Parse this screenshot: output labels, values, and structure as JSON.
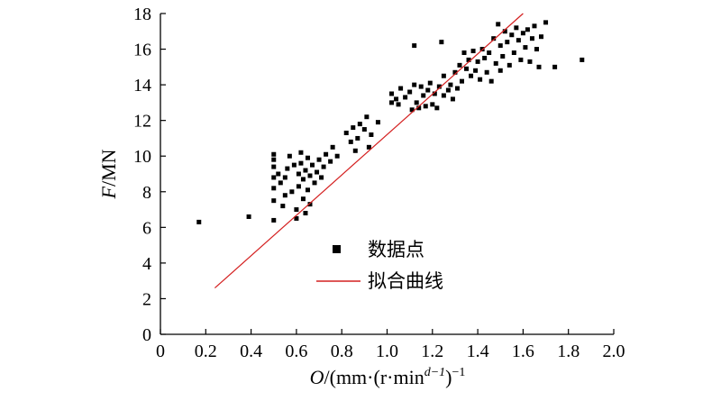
{
  "chart_data": {
    "type": "scatter",
    "xlabel": {
      "symbol": "O",
      "unit_prefix": "/(mm·(r·min",
      "unit_sup": "d−1",
      "unit_close": ")",
      "unit_sup2": "−1"
    },
    "ylabel": {
      "symbol": "F",
      "unit": "/MN"
    },
    "xlim": [
      0,
      2.0
    ],
    "ylim": [
      0,
      18
    ],
    "x_ticks": [
      "0",
      "0.2",
      "0.4",
      "0.6",
      "0.8",
      "1.0",
      "1.2",
      "1.4",
      "1.6",
      "1.8",
      "2.0"
    ],
    "y_ticks": [
      "0",
      "2",
      "4",
      "6",
      "8",
      "10",
      "12",
      "14",
      "16",
      "18"
    ],
    "legend": {
      "position": "lower-center",
      "entries": [
        {
          "label": "数据点",
          "marker": "square",
          "color": "#000000"
        },
        {
          "label": "拟合曲线",
          "marker": "line",
          "color": "#d42020"
        }
      ]
    },
    "series": [
      {
        "name": "数据点",
        "color": "#000000",
        "points": [
          [
            0.17,
            6.3
          ],
          [
            0.39,
            6.6
          ],
          [
            0.5,
            6.4
          ],
          [
            0.5,
            7.5
          ],
          [
            0.5,
            8.2
          ],
          [
            0.5,
            8.8
          ],
          [
            0.5,
            9.4
          ],
          [
            0.5,
            9.8
          ],
          [
            0.5,
            10.1
          ],
          [
            0.52,
            9.0
          ],
          [
            0.53,
            8.5
          ],
          [
            0.54,
            7.2
          ],
          [
            0.55,
            7.8
          ],
          [
            0.55,
            8.8
          ],
          [
            0.56,
            9.3
          ],
          [
            0.57,
            10.0
          ],
          [
            0.58,
            8.0
          ],
          [
            0.59,
            9.5
          ],
          [
            0.6,
            6.5
          ],
          [
            0.6,
            7.0
          ],
          [
            0.61,
            8.3
          ],
          [
            0.61,
            9.0
          ],
          [
            0.62,
            9.6
          ],
          [
            0.62,
            10.2
          ],
          [
            0.63,
            7.6
          ],
          [
            0.63,
            8.7
          ],
          [
            0.64,
            6.8
          ],
          [
            0.64,
            9.2
          ],
          [
            0.65,
            8.1
          ],
          [
            0.65,
            9.9
          ],
          [
            0.66,
            7.3
          ],
          [
            0.66,
            8.9
          ],
          [
            0.67,
            9.5
          ],
          [
            0.68,
            8.5
          ],
          [
            0.69,
            9.1
          ],
          [
            0.7,
            9.8
          ],
          [
            0.71,
            8.8
          ],
          [
            0.72,
            9.4
          ],
          [
            0.73,
            10.1
          ],
          [
            0.75,
            9.7
          ],
          [
            0.76,
            10.5
          ],
          [
            0.78,
            10.0
          ],
          [
            0.82,
            11.3
          ],
          [
            0.84,
            10.8
          ],
          [
            0.85,
            11.6
          ],
          [
            0.86,
            10.3
          ],
          [
            0.87,
            11.0
          ],
          [
            0.88,
            11.8
          ],
          [
            0.9,
            11.5
          ],
          [
            0.91,
            12.2
          ],
          [
            0.92,
            10.5
          ],
          [
            0.93,
            11.2
          ],
          [
            0.96,
            11.9
          ],
          [
            1.02,
            13.0
          ],
          [
            1.02,
            13.5
          ],
          [
            1.04,
            13.2
          ],
          [
            1.05,
            12.9
          ],
          [
            1.06,
            13.8
          ],
          [
            1.08,
            13.3
          ],
          [
            1.1,
            13.6
          ],
          [
            1.11,
            12.6
          ],
          [
            1.12,
            16.2
          ],
          [
            1.12,
            14.0
          ],
          [
            1.13,
            13.0
          ],
          [
            1.14,
            12.7
          ],
          [
            1.15,
            13.9
          ],
          [
            1.16,
            13.4
          ],
          [
            1.17,
            12.8
          ],
          [
            1.18,
            13.7
          ],
          [
            1.19,
            14.1
          ],
          [
            1.2,
            12.9
          ],
          [
            1.21,
            13.5
          ],
          [
            1.22,
            12.7
          ],
          [
            1.23,
            13.9
          ],
          [
            1.24,
            16.4
          ],
          [
            1.25,
            13.4
          ],
          [
            1.25,
            14.5
          ],
          [
            1.27,
            13.7
          ],
          [
            1.28,
            14.0
          ],
          [
            1.29,
            13.2
          ],
          [
            1.3,
            14.7
          ],
          [
            1.31,
            13.8
          ],
          [
            1.32,
            15.1
          ],
          [
            1.33,
            14.2
          ],
          [
            1.34,
            15.8
          ],
          [
            1.35,
            14.9
          ],
          [
            1.36,
            15.4
          ],
          [
            1.37,
            14.5
          ],
          [
            1.38,
            15.9
          ],
          [
            1.39,
            14.8
          ],
          [
            1.4,
            15.3
          ],
          [
            1.41,
            14.3
          ],
          [
            1.42,
            16.0
          ],
          [
            1.43,
            15.5
          ],
          [
            1.44,
            14.7
          ],
          [
            1.45,
            15.8
          ],
          [
            1.46,
            14.2
          ],
          [
            1.47,
            16.6
          ],
          [
            1.48,
            15.2
          ],
          [
            1.49,
            17.4
          ],
          [
            1.5,
            14.8
          ],
          [
            1.5,
            16.2
          ],
          [
            1.51,
            15.6
          ],
          [
            1.52,
            17.0
          ],
          [
            1.53,
            16.4
          ],
          [
            1.54,
            15.1
          ],
          [
            1.55,
            16.8
          ],
          [
            1.56,
            15.8
          ],
          [
            1.57,
            17.2
          ],
          [
            1.58,
            16.5
          ],
          [
            1.59,
            15.4
          ],
          [
            1.6,
            16.9
          ],
          [
            1.61,
            16.1
          ],
          [
            1.62,
            17.1
          ],
          [
            1.63,
            15.3
          ],
          [
            1.64,
            16.6
          ],
          [
            1.65,
            17.3
          ],
          [
            1.66,
            16.0
          ],
          [
            1.67,
            15.0
          ],
          [
            1.68,
            16.7
          ],
          [
            1.7,
            17.5
          ],
          [
            1.74,
            15.0
          ],
          [
            1.86,
            15.4
          ]
        ]
      },
      {
        "name": "拟合曲线",
        "color": "#d42020",
        "line": [
          [
            0.24,
            2.6
          ],
          [
            1.6,
            18.0
          ]
        ]
      }
    ]
  }
}
